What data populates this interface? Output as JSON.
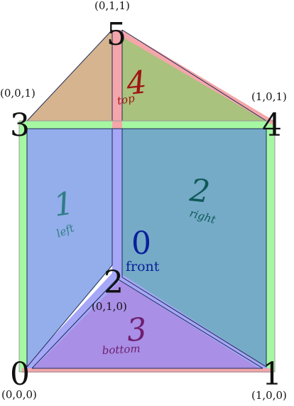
{
  "vertices": [
    {
      "id": "v0",
      "number": "0",
      "coord": "(0,0,0)"
    },
    {
      "id": "v1",
      "number": "1",
      "coord": "(1,0,0)"
    },
    {
      "id": "v2",
      "number": "2",
      "coord": "(0,1,0)"
    },
    {
      "id": "v3",
      "number": "3",
      "coord": "(0,0,1)"
    },
    {
      "id": "v4",
      "number": "4",
      "coord": "(1,0,1)"
    },
    {
      "id": "v5",
      "number": "5",
      "coord": "(0,1,1)"
    }
  ],
  "faces": {
    "front": {
      "number": "0",
      "name": "front",
      "color": "#0b1f9a"
    },
    "left": {
      "number": "1",
      "name": "left",
      "color": "#2f7d86"
    },
    "right": {
      "number": "2",
      "name": "right",
      "color": "#0f5a5a"
    },
    "bottom": {
      "number": "3",
      "name": "bottom",
      "color": "#6e1f6e"
    },
    "top": {
      "number": "4",
      "name": "top",
      "color": "#a01414"
    }
  },
  "colors": {
    "left_face": "#93aeea",
    "right_face": "#75abc7",
    "bottom_face": "#a98fe6",
    "top_left_face": "#d6b48f",
    "top_right_face": "#a9c27d",
    "edge_green": "#a5f7a1",
    "edge_blue": "#a6a7f7",
    "edge_pink": "#f4a6aa"
  }
}
